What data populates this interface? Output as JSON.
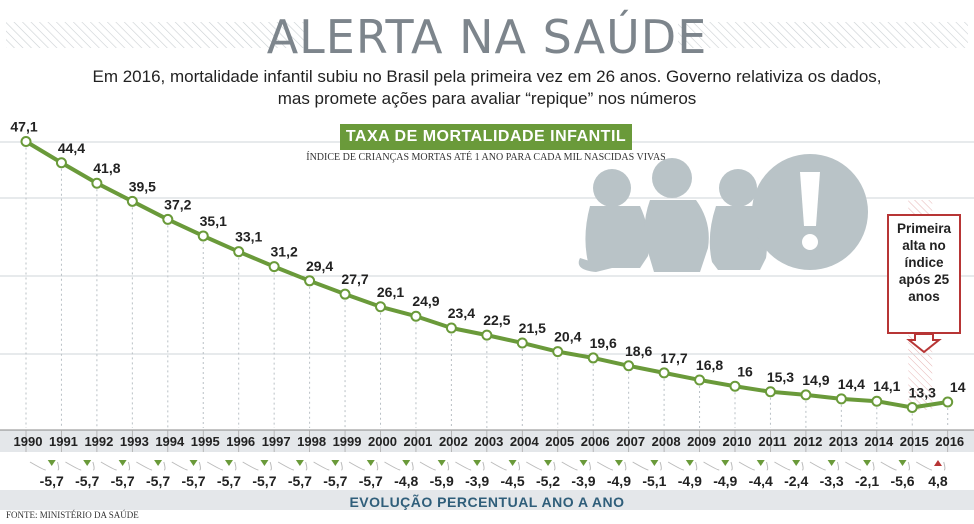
{
  "title": "ALERTA NA SAÚDE",
  "subtitle_lines": [
    "Em 2016, mortalidade infantil subiu no Brasil pela primeira vez em 26 anos. Governo relativiza os dados,",
    "mas promete ações para avaliar “repique” nos números"
  ],
  "banner": "TAXA DE MORTALIDADE INFANTIL",
  "banner_subtitle": "ÍNDICE DE CRIANÇAS MORTAS ATÉ 1 ANO PARA CADA MIL NASCIDAS VIVAS",
  "callout": "Primeira alta no índice após 25 anos",
  "footer_label": "EVOLUÇÃO PERCENTUAL ANO A ANO",
  "source": "FONTE: MINISTÉRIO DA SAÚDE",
  "colors": {
    "line": "#6a9a3a",
    "title": "#7d858c",
    "callout_border": "#b73535",
    "highlight_band": "#f2d6d6",
    "down_triangle": "#6a9a3a",
    "up_triangle": "#b73535",
    "footer_text": "#2f5e7a",
    "illustration": "#b9c3c7"
  },
  "icons": [
    "children-silhouette-icon",
    "exclamation-icon"
  ],
  "chart_data": {
    "type": "line",
    "x": [
      "1990",
      "1991",
      "1992",
      "1993",
      "1994",
      "1995",
      "1996",
      "1997",
      "1998",
      "1999",
      "2000",
      "2001",
      "2002",
      "2003",
      "2004",
      "2005",
      "2006",
      "2007",
      "2008",
      "2009",
      "2010",
      "2011",
      "2012",
      "2013",
      "2014",
      "2015",
      "2016"
    ],
    "values": [
      47.1,
      44.4,
      41.8,
      39.5,
      37.2,
      35.1,
      33.1,
      31.2,
      29.4,
      27.7,
      26.1,
      24.9,
      23.4,
      22.5,
      21.5,
      20.4,
      19.6,
      18.6,
      17.7,
      16.8,
      16,
      15.3,
      14.9,
      14.4,
      14.1,
      13.3,
      14
    ],
    "value_labels": [
      "47,1",
      "44,4",
      "41,8",
      "39,5",
      "37,2",
      "35,1",
      "33,1",
      "31,2",
      "29,4",
      "27,7",
      "26,1",
      "24,9",
      "23,4",
      "22,5",
      "21,5",
      "20,4",
      "19,6",
      "18,6",
      "17,7",
      "16,8",
      "16",
      "15,3",
      "14,9",
      "14,4",
      "14,1",
      "13,3",
      "14"
    ],
    "pct_change": [
      -5.7,
      -5.7,
      -5.7,
      -5.7,
      -5.7,
      -5.7,
      -5.7,
      -5.7,
      -5.7,
      -5.7,
      -4.8,
      -5.9,
      -3.9,
      -4.5,
      -5.2,
      -3.9,
      -4.9,
      -5.1,
      -4.9,
      -4.9,
      -4.4,
      -2.4,
      -3.3,
      -2.1,
      -5.6,
      4.8
    ],
    "pct_labels": [
      "-5,7",
      "-5,7",
      "-5,7",
      "-5,7",
      "-5,7",
      "-5,7",
      "-5,7",
      "-5,7",
      "-5,7",
      "-5,7",
      "-4,8",
      "-5,9",
      "-3,9",
      "-4,5",
      "-5,2",
      "-3,9",
      "-4,9",
      "-5,1",
      "-4,9",
      "-4,9",
      "-4,4",
      "-2,4",
      "-3,3",
      "-2,1",
      "-5,6",
      "4,8"
    ],
    "highlight_range": [
      "2015",
      "2016"
    ],
    "ylim": [
      10,
      50
    ],
    "grid": true
  }
}
